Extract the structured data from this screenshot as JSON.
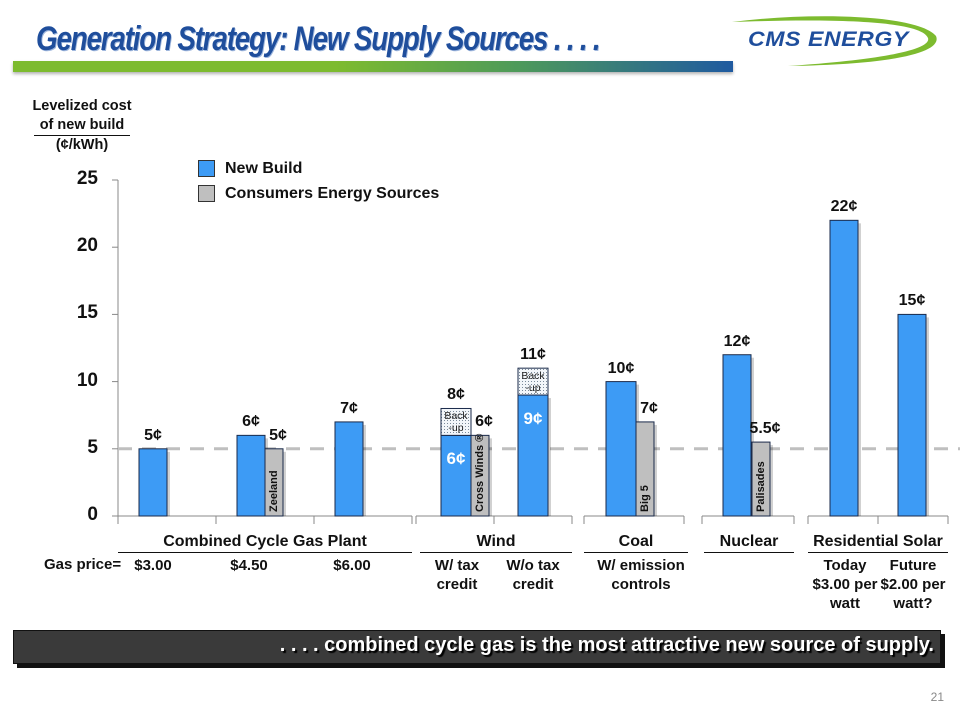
{
  "header": {
    "title": "Generation Strategy:  New Supply Sources . . . .",
    "logo_text": "CMS ENERGY"
  },
  "footer": {
    "banner": ". . . . combined cycle gas is the most attractive new source of supply.",
    "page_number": "21"
  },
  "colors": {
    "new_build": "#3d9bf5",
    "consumers_energy": "#bfbfbf",
    "title": "#1f4e9c",
    "title_bar_green": "#7dbb2f",
    "reference_line": "#bfbfbf"
  },
  "chart_data": {
    "type": "bar",
    "title": "Levelized cost of new build",
    "ylabel_lines": [
      "Levelized cost",
      "of new build",
      "(¢/kWh)"
    ],
    "xlabel": "",
    "ylim": [
      0,
      25
    ],
    "yticks": [
      "0",
      "5",
      "10",
      "15",
      "20",
      "25"
    ],
    "grid": false,
    "reference_line": {
      "value": 5,
      "style": "dashed"
    },
    "legend": {
      "position": "top-left",
      "entries": [
        {
          "name": "New Build",
          "color": "#3d9bf5"
        },
        {
          "name": "Consumers Energy Sources",
          "color": "#bfbfbf"
        }
      ]
    },
    "groups": [
      {
        "name": "Combined Cycle Gas Plant",
        "subs": [
          "$3.00",
          "$4.50",
          "$6.00"
        ],
        "sub_prefix": "Gas price="
      },
      {
        "name": "Wind",
        "subs": [
          "W/ tax\ncredit",
          "W/o tax\ncredit"
        ]
      },
      {
        "name": "Coal",
        "subs": [
          "W/ emission\ncontrols"
        ]
      },
      {
        "name": "Nuclear",
        "subs": []
      },
      {
        "name": "Residential Solar",
        "subs": [
          "Today\n$3.00 per\nwatt",
          "Future\n$2.00 per\nwatt?"
        ]
      }
    ],
    "bars": [
      {
        "series": "New Build",
        "category": "Gas $3.00",
        "value": 5,
        "label": "5¢"
      },
      {
        "series": "New Build",
        "category": "Gas $4.50",
        "value": 6,
        "label": "6¢"
      },
      {
        "series": "Consumers Energy Sources",
        "category": "Zeeland",
        "value": 5,
        "label": "5¢",
        "name": "Zeeland"
      },
      {
        "series": "New Build",
        "category": "Gas $6.00",
        "value": 7,
        "label": "7¢"
      },
      {
        "series": "New Build",
        "category": "Wind W/ tax credit",
        "value": 6,
        "label": "6¢",
        "backup": 2,
        "backup_label": "Back\n-up",
        "total_label": "8¢"
      },
      {
        "series": "Consumers Energy Sources",
        "category": "Cross Winds",
        "value": 6,
        "label": "6¢",
        "name": "Cross Winds ®"
      },
      {
        "series": "New Build",
        "category": "Wind W/o tax credit",
        "value": 9,
        "label": "9¢",
        "backup": 2,
        "backup_label": "Back\n-up",
        "total_label": "11¢"
      },
      {
        "series": "New Build",
        "category": "Coal W/ emission controls",
        "value": 10,
        "label": "10¢"
      },
      {
        "series": "Consumers Energy Sources",
        "category": "Big 5",
        "value": 7,
        "label": "7¢",
        "name": "Big 5"
      },
      {
        "series": "New Build",
        "category": "Nuclear",
        "value": 12,
        "label": "12¢"
      },
      {
        "series": "Consumers Energy Sources",
        "category": "Palisades",
        "value": 5.5,
        "label": "5.5¢",
        "name": "Palisades"
      },
      {
        "series": "New Build",
        "category": "Solar Today",
        "value": 22,
        "label": "22¢"
      },
      {
        "series": "New Build",
        "category": "Solar Future",
        "value": 15,
        "label": "15¢"
      }
    ]
  }
}
